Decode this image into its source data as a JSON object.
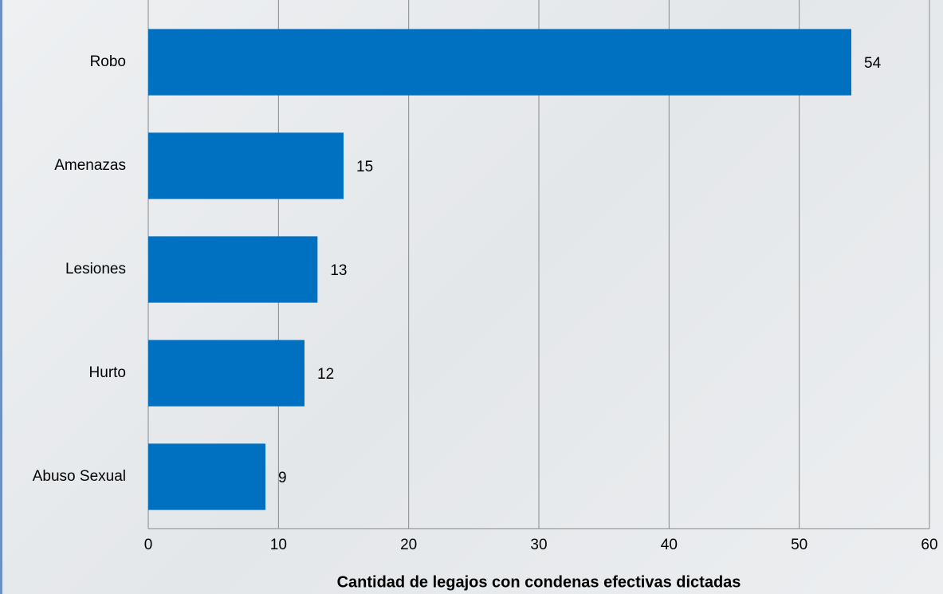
{
  "chart_data": {
    "type": "barh",
    "categories": [
      "Robo",
      "Amenazas",
      "Lesiones",
      "Hurto",
      "Abuso Sexual"
    ],
    "values": [
      54,
      15,
      13,
      12,
      9
    ],
    "color": "#0070c0",
    "xlabel": "Cantidad de legajos con condenas efectivas dictadas",
    "xlim": [
      0,
      60
    ],
    "xticks": [
      0,
      10,
      20,
      30,
      40,
      50,
      60
    ],
    "grid": true
  }
}
